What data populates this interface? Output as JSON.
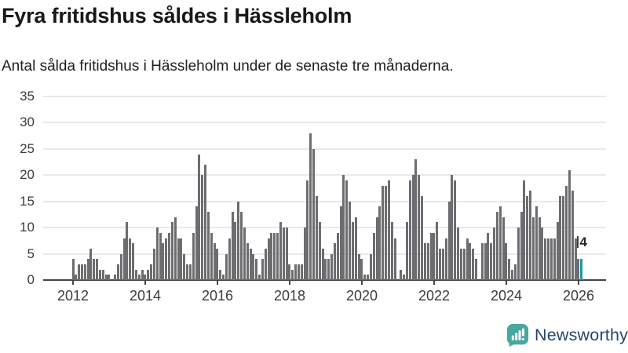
{
  "title": "Fyra fritidshus såldes i Hässleholm",
  "subtitle": "Antal sålda fritidshus i Hässleholm under de senaste tre månaderna.",
  "chart_data": {
    "type": "bar",
    "title": "Fyra fritidshus såldes i Hässleholm",
    "subtitle": "Antal sålda fritidshus i Hässleholm under de senaste tre månaderna.",
    "frequency": "monthly",
    "start_month": "2012-01",
    "values": [
      4,
      1,
      3,
      3,
      3,
      4,
      6,
      4,
      4,
      2,
      2,
      1,
      1,
      0,
      1,
      3,
      5,
      8,
      11,
      8,
      7,
      2,
      1,
      2,
      1,
      2,
      3,
      6,
      10,
      9,
      7,
      8,
      9,
      11,
      12,
      8,
      8,
      5,
      3,
      3,
      9,
      14,
      24,
      20,
      22,
      13,
      9,
      7,
      6,
      2,
      1,
      5,
      8,
      13,
      11,
      15,
      13,
      10,
      7,
      6,
      5,
      4,
      1,
      4,
      6,
      8,
      9,
      9,
      9,
      11,
      10,
      10,
      3,
      2,
      3,
      3,
      3,
      10,
      19,
      28,
      25,
      16,
      11,
      6,
      4,
      4,
      5,
      7,
      9,
      14,
      20,
      19,
      15,
      11,
      12,
      5,
      4,
      1,
      1,
      5,
      9,
      12,
      14,
      18,
      18,
      19,
      11,
      8,
      0,
      2,
      1,
      11,
      19,
      20,
      23,
      20,
      16,
      7,
      7,
      9,
      9,
      11,
      6,
      6,
      8,
      15,
      20,
      19,
      10,
      6,
      6,
      8,
      7,
      6,
      4,
      0,
      7,
      7,
      9,
      7,
      10,
      13,
      14,
      12,
      7,
      4,
      2,
      3,
      10,
      13,
      19,
      16,
      17,
      12,
      14,
      12,
      10,
      8,
      8,
      8,
      8,
      11,
      16,
      16,
      18,
      21,
      17,
      8,
      4,
      4
    ],
    "x_tick_labels": [
      "2012",
      "2014",
      "2016",
      "2018",
      "2020",
      "2022",
      "2024",
      "2026"
    ],
    "y_ticks": [
      0,
      5,
      10,
      15,
      20,
      25,
      30,
      35
    ],
    "ylim": [
      0,
      35
    ],
    "grid": true,
    "legend": "none",
    "last_value": 4,
    "annotation_label": "4",
    "bar_color": "#6d6d71",
    "highlight_color": "#1a9c9c"
  },
  "logo": {
    "text": "Newsworthy",
    "icon": "newsworthy-bar-chart-bubble-icon",
    "icon_color": "#48a79f",
    "text_color": "#25476b"
  }
}
